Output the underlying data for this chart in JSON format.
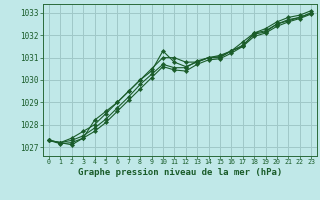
{
  "title": "Graphe pression niveau de la mer (hPa)",
  "bg_color": "#c0e8e8",
  "grid_color": "#a0c8c8",
  "line_color": "#1a5c2a",
  "spine_color": "#2a6a3a",
  "xlim": [
    -0.5,
    23.5
  ],
  "ylim": [
    1026.6,
    1033.4
  ],
  "yticks": [
    1027,
    1028,
    1029,
    1030,
    1031,
    1032,
    1033
  ],
  "xticks": [
    0,
    1,
    2,
    3,
    4,
    5,
    6,
    7,
    8,
    9,
    10,
    11,
    12,
    13,
    14,
    15,
    16,
    17,
    18,
    19,
    20,
    21,
    22,
    23
  ],
  "series": [
    [
      1027.3,
      1027.2,
      1027.1,
      1027.4,
      1028.2,
      1028.6,
      1029.0,
      1029.5,
      1030.0,
      1030.4,
      1031.3,
      1030.8,
      1030.6,
      1030.8,
      1031.0,
      1031.0,
      1031.3,
      1031.7,
      1032.1,
      1032.2,
      1032.5,
      1032.7,
      1032.8,
      1033.0
    ],
    [
      1027.3,
      1027.15,
      1027.2,
      1027.4,
      1027.7,
      1028.1,
      1028.6,
      1029.1,
      1029.6,
      1030.1,
      1030.6,
      1030.45,
      1030.4,
      1030.7,
      1030.9,
      1030.95,
      1031.2,
      1031.5,
      1031.95,
      1032.1,
      1032.4,
      1032.6,
      1032.75,
      1032.95
    ],
    [
      1027.3,
      1027.2,
      1027.3,
      1027.5,
      1027.85,
      1028.25,
      1028.75,
      1029.25,
      1029.8,
      1030.25,
      1030.7,
      1030.55,
      1030.55,
      1030.85,
      1031.0,
      1031.05,
      1031.3,
      1031.55,
      1032.05,
      1032.15,
      1032.5,
      1032.65,
      1032.8,
      1033.0
    ],
    [
      1027.3,
      1027.2,
      1027.4,
      1027.7,
      1028.0,
      1028.5,
      1029.0,
      1029.5,
      1030.0,
      1030.5,
      1031.0,
      1031.0,
      1030.8,
      1030.8,
      1031.0,
      1031.1,
      1031.3,
      1031.5,
      1032.1,
      1032.3,
      1032.6,
      1032.8,
      1032.9,
      1033.1
    ]
  ]
}
